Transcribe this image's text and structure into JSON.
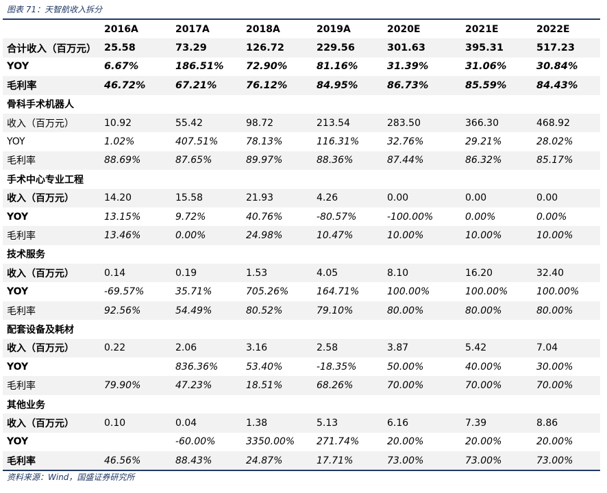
{
  "caption": "图表 71：天智航收入拆分",
  "source": "资料来源：Wind，国盛证券研究所",
  "table": {
    "headers": [
      "",
      "2016A",
      "2017A",
      "2018A",
      "2019A",
      "2020E",
      "2021E",
      "2022E"
    ],
    "rows": [
      {
        "type": "tot",
        "shade": true,
        "label": "合计收入（百万元）",
        "cells": [
          "25.58",
          "73.29",
          "126.72",
          "229.56",
          "301.63",
          "395.31",
          "517.23"
        ],
        "italic": false
      },
      {
        "type": "tot",
        "shade": false,
        "label": "YOY",
        "cells": [
          "6.67%",
          "186.51%",
          "72.90%",
          "81.16%",
          "31.39%",
          "31.06%",
          "30.84%"
        ],
        "italic": true
      },
      {
        "type": "tot",
        "shade": true,
        "label": "毛利率",
        "cells": [
          "46.72%",
          "67.21%",
          "76.12%",
          "84.95%",
          "86.73%",
          "85.59%",
          "84.43%"
        ],
        "italic": true
      },
      {
        "type": "section",
        "shade": false,
        "label": "骨科手术机器人",
        "cells": [
          "",
          "",
          "",
          "",
          "",
          "",
          ""
        ],
        "italic": false
      },
      {
        "type": "plain",
        "shade": true,
        "label": "收入（百万元）",
        "cells": [
          "10.92",
          "55.42",
          "98.72",
          "213.54",
          "283.50",
          "366.30",
          "468.92"
        ],
        "italic": false
      },
      {
        "type": "plain",
        "shade": false,
        "label": "YOY",
        "cells": [
          "1.02%",
          "407.51%",
          "78.13%",
          "116.31%",
          "32.76%",
          "29.21%",
          "28.02%"
        ],
        "italic": true
      },
      {
        "type": "plain",
        "shade": true,
        "label": "毛利率",
        "cells": [
          "88.69%",
          "87.65%",
          "89.97%",
          "88.36%",
          "87.44%",
          "86.32%",
          "85.17%"
        ],
        "italic": true
      },
      {
        "type": "section",
        "shade": false,
        "label": "手术中心专业工程",
        "cells": [
          "",
          "",
          "",
          "",
          "",
          "",
          ""
        ],
        "italic": false
      },
      {
        "type": "boldlabel",
        "shade": true,
        "label": "收入（百万元）",
        "cells": [
          "14.20",
          "15.58",
          "21.93",
          "4.26",
          "0.00",
          "0.00",
          "0.00"
        ],
        "italic": false
      },
      {
        "type": "boldlabel",
        "shade": false,
        "label": "YOY",
        "cells": [
          "13.15%",
          "9.72%",
          "40.76%",
          "-80.57%",
          "-100.00%",
          "0.00%",
          "0.00%"
        ],
        "italic": true
      },
      {
        "type": "plain",
        "shade": true,
        "label": "毛利率",
        "cells": [
          "13.46%",
          "0.00%",
          "24.98%",
          "10.47%",
          "10.00%",
          "10.00%",
          "10.00%"
        ],
        "italic": true
      },
      {
        "type": "section",
        "shade": false,
        "label": "技术服务",
        "cells": [
          "",
          "",
          "",
          "",
          "",
          "",
          ""
        ],
        "italic": false
      },
      {
        "type": "boldlabel",
        "shade": true,
        "label": "收入（百万元）",
        "cells": [
          "0.14",
          "0.19",
          "1.53",
          "4.05",
          "8.10",
          "16.20",
          "32.40"
        ],
        "italic": false
      },
      {
        "type": "boldlabel",
        "shade": false,
        "label": "YOY",
        "cells": [
          "-69.57%",
          "35.71%",
          "705.26%",
          "164.71%",
          "100.00%",
          "100.00%",
          "100.00%"
        ],
        "italic": true
      },
      {
        "type": "plain",
        "shade": true,
        "label": "毛利率",
        "cells": [
          "92.56%",
          "54.49%",
          "80.52%",
          "79.10%",
          "80.00%",
          "80.00%",
          "80.00%"
        ],
        "italic": true
      },
      {
        "type": "section",
        "shade": false,
        "label": "配套设备及耗材",
        "cells": [
          "",
          "",
          "",
          "",
          "",
          "",
          ""
        ],
        "italic": false
      },
      {
        "type": "boldlabel",
        "shade": true,
        "label": "收入（百万元）",
        "cells": [
          "0.22",
          "2.06",
          "3.16",
          "2.58",
          "3.87",
          "5.42",
          "7.04"
        ],
        "italic": false
      },
      {
        "type": "boldlabel",
        "shade": false,
        "label": "YOY",
        "cells": [
          "",
          "836.36%",
          "53.40%",
          "-18.35%",
          "50.00%",
          "40.00%",
          "30.00%"
        ],
        "italic": true
      },
      {
        "type": "plain",
        "shade": true,
        "label": "毛利率",
        "cells": [
          "79.90%",
          "47.23%",
          "18.51%",
          "68.26%",
          "70.00%",
          "70.00%",
          "70.00%"
        ],
        "italic": true
      },
      {
        "type": "section",
        "shade": false,
        "label": "其他业务",
        "cells": [
          "",
          "",
          "",
          "",
          "",
          "",
          ""
        ],
        "italic": false
      },
      {
        "type": "boldlabel",
        "shade": true,
        "label": "收入（百万元）",
        "cells": [
          "0.10",
          "0.04",
          "1.38",
          "5.13",
          "6.16",
          "7.39",
          "8.86"
        ],
        "italic": false
      },
      {
        "type": "boldlabel",
        "shade": false,
        "label": "YOY",
        "cells": [
          "",
          "-60.00%",
          "3350.00%",
          "271.74%",
          "20.00%",
          "20.00%",
          "20.00%"
        ],
        "italic": true
      },
      {
        "type": "boldlabel",
        "shade": true,
        "label": "毛利率",
        "cells": [
          "46.56%",
          "88.43%",
          "24.87%",
          "17.71%",
          "73.00%",
          "73.00%",
          "73.00%"
        ],
        "italic": true
      }
    ]
  }
}
